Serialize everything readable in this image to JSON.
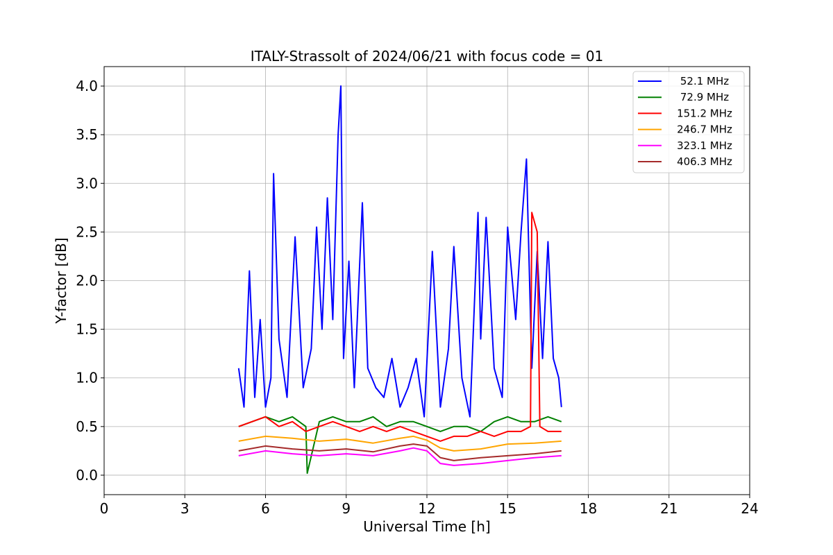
{
  "chart_data": {
    "type": "line",
    "title": "ITALY-Strassolt of 2024/06/21 with focus code = 01",
    "xlabel": "Universal Time [h]",
    "ylabel": "Y-factor [dB]",
    "xlim": [
      0,
      24
    ],
    "ylim": [
      -0.2,
      4.2
    ],
    "xticks": [
      0,
      3,
      6,
      9,
      12,
      15,
      18,
      21,
      24
    ],
    "yticks": [
      0.0,
      0.5,
      1.0,
      1.5,
      2.0,
      2.5,
      3.0,
      3.5,
      4.0
    ],
    "xtick_labels": [
      "0",
      "3",
      "6",
      "9",
      "12",
      "15",
      "18",
      "21",
      "24"
    ],
    "ytick_labels": [
      "0.0",
      "0.5",
      "1.0",
      "1.5",
      "2.0",
      "2.5",
      "3.0",
      "3.5",
      "4.0"
    ],
    "grid": true,
    "legend_position": "top-right",
    "series": [
      {
        "name": " 52.1 MHz",
        "color": "#0000ff",
        "x": [
          5.0,
          5.2,
          5.4,
          5.6,
          5.8,
          6.0,
          6.2,
          6.3,
          6.5,
          6.8,
          7.1,
          7.4,
          7.7,
          7.9,
          8.1,
          8.3,
          8.5,
          8.7,
          8.8,
          8.9,
          9.1,
          9.3,
          9.6,
          9.8,
          10.1,
          10.4,
          10.7,
          11.0,
          11.3,
          11.6,
          11.9,
          12.2,
          12.5,
          12.8,
          13.0,
          13.3,
          13.6,
          13.9,
          14.0,
          14.2,
          14.5,
          14.8,
          15.0,
          15.3,
          15.5,
          15.7,
          15.9,
          16.1,
          16.3,
          16.5,
          16.7,
          16.9,
          17.0
        ],
        "y": [
          1.1,
          0.7,
          2.1,
          0.8,
          1.6,
          0.7,
          1.0,
          3.1,
          1.4,
          0.8,
          2.45,
          0.9,
          1.3,
          2.55,
          1.5,
          2.85,
          1.6,
          3.5,
          4.0,
          1.2,
          2.2,
          0.9,
          2.8,
          1.1,
          0.9,
          0.8,
          1.2,
          0.7,
          0.9,
          1.2,
          0.6,
          2.3,
          0.7,
          1.3,
          2.35,
          1.0,
          0.6,
          2.7,
          1.4,
          2.65,
          1.1,
          0.8,
          2.55,
          1.6,
          2.5,
          3.25,
          1.1,
          2.3,
          1.2,
          2.4,
          1.2,
          1.0,
          0.7
        ]
      },
      {
        "name": " 72.9 MHz",
        "color": "#008000",
        "x": [
          5.0,
          5.5,
          6.0,
          6.5,
          7.0,
          7.5,
          7.55,
          8.0,
          8.5,
          9.0,
          9.5,
          10.0,
          10.5,
          11.0,
          11.5,
          12.0,
          12.5,
          13.0,
          13.5,
          14.0,
          14.5,
          15.0,
          15.5,
          16.0,
          16.5,
          17.0
        ],
        "y": [
          0.5,
          0.55,
          0.6,
          0.55,
          0.6,
          0.5,
          0.02,
          0.55,
          0.6,
          0.55,
          0.55,
          0.6,
          0.5,
          0.55,
          0.55,
          0.5,
          0.45,
          0.5,
          0.5,
          0.45,
          0.55,
          0.6,
          0.55,
          0.55,
          0.6,
          0.55
        ]
      },
      {
        "name": "151.2 MHz",
        "color": "#ff0000",
        "x": [
          5.0,
          5.5,
          6.0,
          6.5,
          7.0,
          7.5,
          8.0,
          8.5,
          9.0,
          9.5,
          10.0,
          10.5,
          11.0,
          11.5,
          12.0,
          12.5,
          13.0,
          13.5,
          14.0,
          14.5,
          15.0,
          15.5,
          15.85,
          15.9,
          16.0,
          16.1,
          16.2,
          16.5,
          17.0
        ],
        "y": [
          0.5,
          0.55,
          0.6,
          0.5,
          0.55,
          0.45,
          0.5,
          0.55,
          0.5,
          0.45,
          0.5,
          0.45,
          0.5,
          0.45,
          0.4,
          0.35,
          0.4,
          0.4,
          0.45,
          0.4,
          0.45,
          0.45,
          0.5,
          2.7,
          2.6,
          2.5,
          0.5,
          0.45,
          0.45
        ]
      },
      {
        "name": "246.7 MHz",
        "color": "#ffa500",
        "x": [
          5.0,
          6.0,
          7.0,
          8.0,
          9.0,
          10.0,
          11.0,
          11.5,
          12.0,
          12.5,
          13.0,
          14.0,
          15.0,
          16.0,
          17.0
        ],
        "y": [
          0.35,
          0.4,
          0.38,
          0.35,
          0.37,
          0.33,
          0.38,
          0.4,
          0.36,
          0.28,
          0.25,
          0.27,
          0.32,
          0.33,
          0.35
        ]
      },
      {
        "name": "323.1 MHz",
        "color": "#ff00ff",
        "x": [
          5.0,
          6.0,
          7.0,
          8.0,
          9.0,
          10.0,
          11.0,
          11.5,
          12.0,
          12.5,
          13.0,
          14.0,
          15.0,
          16.0,
          17.0
        ],
        "y": [
          0.2,
          0.25,
          0.22,
          0.2,
          0.22,
          0.2,
          0.25,
          0.28,
          0.25,
          0.12,
          0.1,
          0.12,
          0.15,
          0.18,
          0.2
        ]
      },
      {
        "name": "406.3 MHz",
        "color": "#a52a2a",
        "x": [
          5.0,
          6.0,
          7.0,
          8.0,
          9.0,
          10.0,
          11.0,
          11.5,
          12.0,
          12.5,
          13.0,
          14.0,
          15.0,
          16.0,
          17.0
        ],
        "y": [
          0.25,
          0.3,
          0.27,
          0.25,
          0.27,
          0.24,
          0.3,
          0.32,
          0.3,
          0.18,
          0.15,
          0.18,
          0.2,
          0.22,
          0.25
        ]
      }
    ]
  }
}
